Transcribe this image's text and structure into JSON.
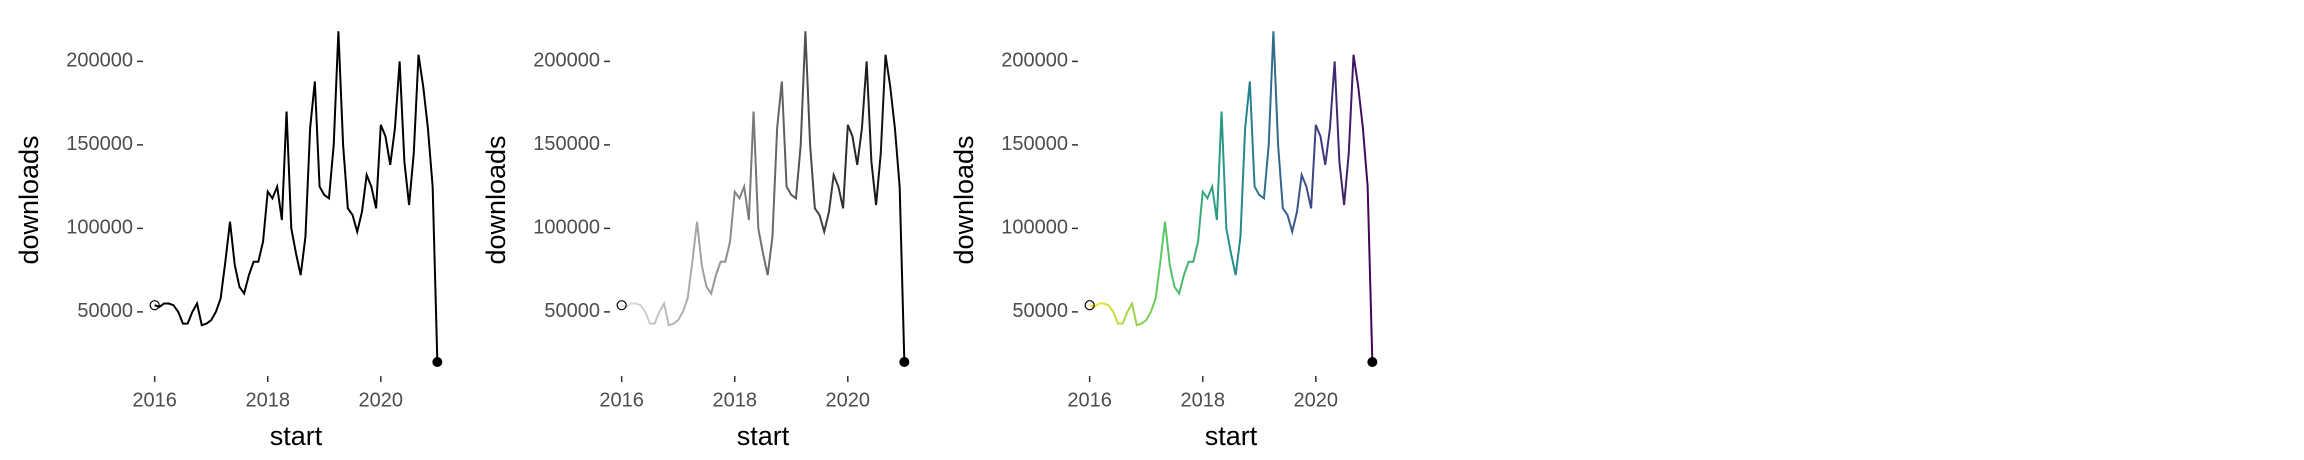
{
  "chart_data": [
    {
      "type": "line",
      "xlabel": "start",
      "ylabel": "downloads",
      "x": [
        2016,
        2016.083,
        2016.167,
        2016.25,
        2016.333,
        2016.417,
        2016.5,
        2016.583,
        2016.667,
        2016.75,
        2016.833,
        2016.917,
        2017,
        2017.083,
        2017.167,
        2017.25,
        2017.333,
        2017.417,
        2017.5,
        2017.583,
        2017.667,
        2017.75,
        2017.833,
        2017.917,
        2018,
        2018.083,
        2018.167,
        2018.25,
        2018.333,
        2018.417,
        2018.5,
        2018.583,
        2018.667,
        2018.75,
        2018.833,
        2018.917,
        2019,
        2019.083,
        2019.167,
        2019.25,
        2019.333,
        2019.417,
        2019.5,
        2019.583,
        2019.667,
        2019.75,
        2019.833,
        2019.917,
        2020,
        2020.083,
        2020.167,
        2020.25,
        2020.333,
        2020.417,
        2020.5,
        2020.583,
        2020.667,
        2020.75,
        2020.833,
        2020.917,
        2021
      ],
      "values": [
        54000,
        53000,
        55000,
        55000,
        54000,
        50000,
        43000,
        43000,
        50000,
        55000,
        42000,
        43000,
        45000,
        50000,
        58000,
        80000,
        104000,
        78000,
        65000,
        61000,
        72000,
        80000,
        80000,
        92000,
        122000,
        118000,
        125000,
        105000,
        170000,
        100000,
        85000,
        72000,
        95000,
        160000,
        188000,
        125000,
        120000,
        118000,
        150000,
        218000,
        150000,
        112000,
        108000,
        98000,
        110000,
        132000,
        125000,
        112000,
        162000,
        155000,
        138000,
        160000,
        200000,
        140000,
        114000,
        145000,
        204000,
        185000,
        160000,
        125000,
        20000
      ],
      "colors": [
        "#000000",
        "#000000"
      ],
      "xlim": [
        2015.9,
        2021.1
      ],
      "xticks": [
        2016,
        2018,
        2020
      ],
      "ylim": [
        14000,
        220000
      ],
      "yticks": [
        50000,
        100000,
        150000,
        200000
      ]
    },
    {
      "type": "line",
      "xlabel": "start",
      "ylabel": "downloads",
      "x": [
        2016,
        2016.083,
        2016.167,
        2016.25,
        2016.333,
        2016.417,
        2016.5,
        2016.583,
        2016.667,
        2016.75,
        2016.833,
        2016.917,
        2017,
        2017.083,
        2017.167,
        2017.25,
        2017.333,
        2017.417,
        2017.5,
        2017.583,
        2017.667,
        2017.75,
        2017.833,
        2017.917,
        2018,
        2018.083,
        2018.167,
        2018.25,
        2018.333,
        2018.417,
        2018.5,
        2018.583,
        2018.667,
        2018.75,
        2018.833,
        2018.917,
        2019,
        2019.083,
        2019.167,
        2019.25,
        2019.333,
        2019.417,
        2019.5,
        2019.583,
        2019.667,
        2019.75,
        2019.833,
        2019.917,
        2020,
        2020.083,
        2020.167,
        2020.25,
        2020.333,
        2020.417,
        2020.5,
        2020.583,
        2020.667,
        2020.75,
        2020.833,
        2020.917,
        2021
      ],
      "values": [
        54000,
        53000,
        55000,
        55000,
        54000,
        50000,
        43000,
        43000,
        50000,
        55000,
        42000,
        43000,
        45000,
        50000,
        58000,
        80000,
        104000,
        78000,
        65000,
        61000,
        72000,
        80000,
        80000,
        92000,
        122000,
        118000,
        125000,
        105000,
        170000,
        100000,
        85000,
        72000,
        95000,
        160000,
        188000,
        125000,
        120000,
        118000,
        150000,
        218000,
        150000,
        112000,
        108000,
        98000,
        110000,
        132000,
        125000,
        112000,
        162000,
        155000,
        138000,
        160000,
        200000,
        140000,
        114000,
        145000,
        204000,
        185000,
        160000,
        125000,
        20000
      ],
      "colors": [
        "#e0e0e0",
        "#000000"
      ],
      "xlim": [
        2015.9,
        2021.1
      ],
      "xticks": [
        2016,
        2018,
        2020
      ],
      "ylim": [
        14000,
        220000
      ],
      "yticks": [
        50000,
        100000,
        150000,
        200000
      ]
    },
    {
      "type": "line",
      "xlabel": "start",
      "ylabel": "downloads",
      "x": [
        2016,
        2016.083,
        2016.167,
        2016.25,
        2016.333,
        2016.417,
        2016.5,
        2016.583,
        2016.667,
        2016.75,
        2016.833,
        2016.917,
        2017,
        2017.083,
        2017.167,
        2017.25,
        2017.333,
        2017.417,
        2017.5,
        2017.583,
        2017.667,
        2017.75,
        2017.833,
        2017.917,
        2018,
        2018.083,
        2018.167,
        2018.25,
        2018.333,
        2018.417,
        2018.5,
        2018.583,
        2018.667,
        2018.75,
        2018.833,
        2018.917,
        2019,
        2019.083,
        2019.167,
        2019.25,
        2019.333,
        2019.417,
        2019.5,
        2019.583,
        2019.667,
        2019.75,
        2019.833,
        2019.917,
        2020,
        2020.083,
        2020.167,
        2020.25,
        2020.333,
        2020.417,
        2020.5,
        2020.583,
        2020.667,
        2020.75,
        2020.833,
        2020.917,
        2021
      ],
      "values": [
        54000,
        53000,
        55000,
        55000,
        54000,
        50000,
        43000,
        43000,
        50000,
        55000,
        42000,
        43000,
        45000,
        50000,
        58000,
        80000,
        104000,
        78000,
        65000,
        61000,
        72000,
        80000,
        80000,
        92000,
        122000,
        118000,
        125000,
        105000,
        170000,
        100000,
        85000,
        72000,
        95000,
        160000,
        188000,
        125000,
        120000,
        118000,
        150000,
        218000,
        150000,
        112000,
        108000,
        98000,
        110000,
        132000,
        125000,
        112000,
        162000,
        155000,
        138000,
        160000,
        200000,
        140000,
        114000,
        145000,
        204000,
        185000,
        160000,
        125000,
        20000
      ],
      "colors": [
        "#fde725",
        "#5ec962",
        "#21918c",
        "#3b528b",
        "#440154"
      ],
      "xlim": [
        2015.9,
        2021.1
      ],
      "xticks": [
        2016,
        2018,
        2020
      ],
      "ylim": [
        14000,
        220000
      ],
      "yticks": [
        50000,
        100000,
        150000,
        200000
      ]
    }
  ]
}
